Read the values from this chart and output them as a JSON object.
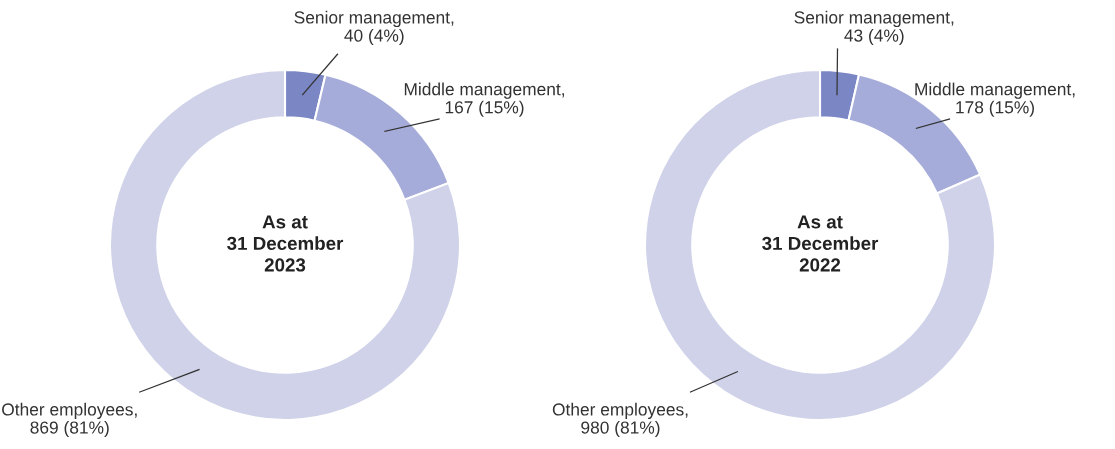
{
  "chart_data": [
    {
      "type": "donut",
      "title": "As at\n31 December\n2023",
      "categories": [
        null,
        null,
        null
      ],
      "values": [
        40,
        167,
        869
      ],
      "value_labels": [
        "Senior management,\n40 (4%)",
        "Middle management,\n167 (15%)",
        "Other employees,\n869 (81%)"
      ],
      "colors": [
        "#7b87c5",
        "#a6acd9",
        "#cfd2e8"
      ]
    },
    {
      "type": "donut",
      "title": "As at\n31 December\n2022",
      "categories": [
        null,
        null,
        null
      ],
      "values": [
        43,
        178,
        980
      ],
      "value_labels": [
        "Senior management,\n43 (4%)",
        "Middle management,\n178 (15%)",
        "Other employees,\n980 (81%)"
      ],
      "colors": [
        "#7b87c5",
        "#a6acd9",
        "#cfd2e8"
      ]
    }
  ]
}
